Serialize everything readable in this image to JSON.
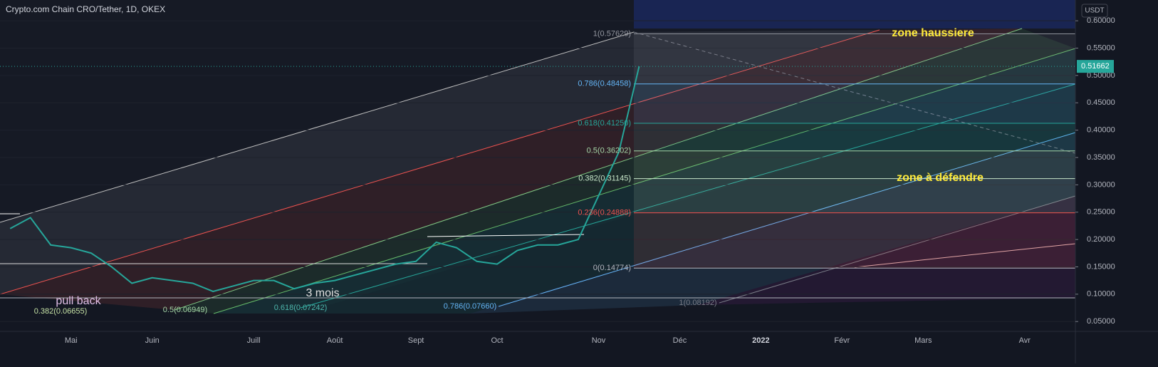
{
  "chart_data": {
    "type": "line",
    "title": "Crypto.com Chain CRO/Tether, 1D, OKEX",
    "currency": "USDT",
    "categories": [
      null,
      null,
      null,
      "Mai",
      null,
      null,
      null,
      "Juin",
      null,
      null,
      null,
      null,
      "Juill",
      null,
      null,
      null,
      "Août",
      null,
      null,
      null,
      "Sept",
      null,
      null,
      null,
      "Oct",
      null,
      null,
      null,
      null,
      "Nov",
      null,
      null,
      null,
      "Déc",
      null,
      null,
      null,
      "2022",
      null,
      null,
      null,
      "Févr",
      null,
      null,
      null,
      "Mars",
      null,
      null,
      null,
      null,
      "Avr",
      null,
      null
    ],
    "series": [
      {
        "name": "CRO/USDT",
        "color": "#26a69a",
        "values": [
          0.22,
          0.24,
          0.19,
          0.185,
          0.175,
          0.15,
          0.12,
          0.13,
          0.125,
          0.12,
          0.105,
          0.115,
          0.125,
          0.125,
          0.11,
          0.12,
          0.125,
          0.135,
          0.145,
          0.155,
          0.16,
          0.195,
          0.185,
          0.16,
          0.155,
          0.18,
          0.19,
          0.19,
          0.2,
          0.28,
          0.36,
          0.51662,
          null,
          null,
          null,
          null,
          null,
          null,
          null,
          null,
          null,
          null,
          null,
          null,
          null,
          null,
          null,
          null,
          null,
          null,
          null,
          null,
          null
        ]
      }
    ],
    "last_price": 0.51662,
    "ylim": [
      0.032,
      0.638
    ],
    "yticks": [
      {
        "value": 0.05,
        "label": "0.05000"
      },
      {
        "value": 0.1,
        "label": "0.10000"
      },
      {
        "value": 0.15,
        "label": "0.15000"
      },
      {
        "value": 0.2,
        "label": "0.20000"
      },
      {
        "value": 0.25,
        "label": "0.25000"
      },
      {
        "value": 0.3,
        "label": "0.30000"
      },
      {
        "value": 0.35,
        "label": "0.35000"
      },
      {
        "value": 0.4,
        "label": "0.40000"
      },
      {
        "value": 0.45,
        "label": "0.45000"
      },
      {
        "value": 0.5,
        "label": "0.50000"
      },
      {
        "value": 0.55,
        "label": "0.55000"
      },
      {
        "value": 0.6,
        "label": "0.60000"
      }
    ],
    "fib_levels": [
      {
        "value": 0.57629,
        "label": "1(0.57629)",
        "color": "#9598a1"
      },
      {
        "value": 0.48458,
        "label": "0.786(0.48458)",
        "color": "#64b5f6"
      },
      {
        "value": 0.4125,
        "label": "0.618(0.41250)",
        "color": "#26a69a"
      },
      {
        "value": 0.36202,
        "label": "0.5(0.36202)",
        "color": "#a5d6a7"
      },
      {
        "value": 0.31145,
        "label": "0.382(0.31145)",
        "color": "#c8e6c9"
      },
      {
        "value": 0.24888,
        "label": "0.236(0.24888)",
        "color": "#ef5350"
      },
      {
        "value": 0.14774,
        "label": "0(0.14774)",
        "color": "#b2b5be"
      }
    ],
    "fan_labels": [
      "0.382(0.06655)",
      "0.5(0.06949)",
      "0.618(0.07242)",
      "0.786(0.07660)",
      "1(0.08192)"
    ],
    "annotations": [
      "zone haussiere",
      "zone à défendre",
      "pull back",
      "3 mois"
    ]
  }
}
